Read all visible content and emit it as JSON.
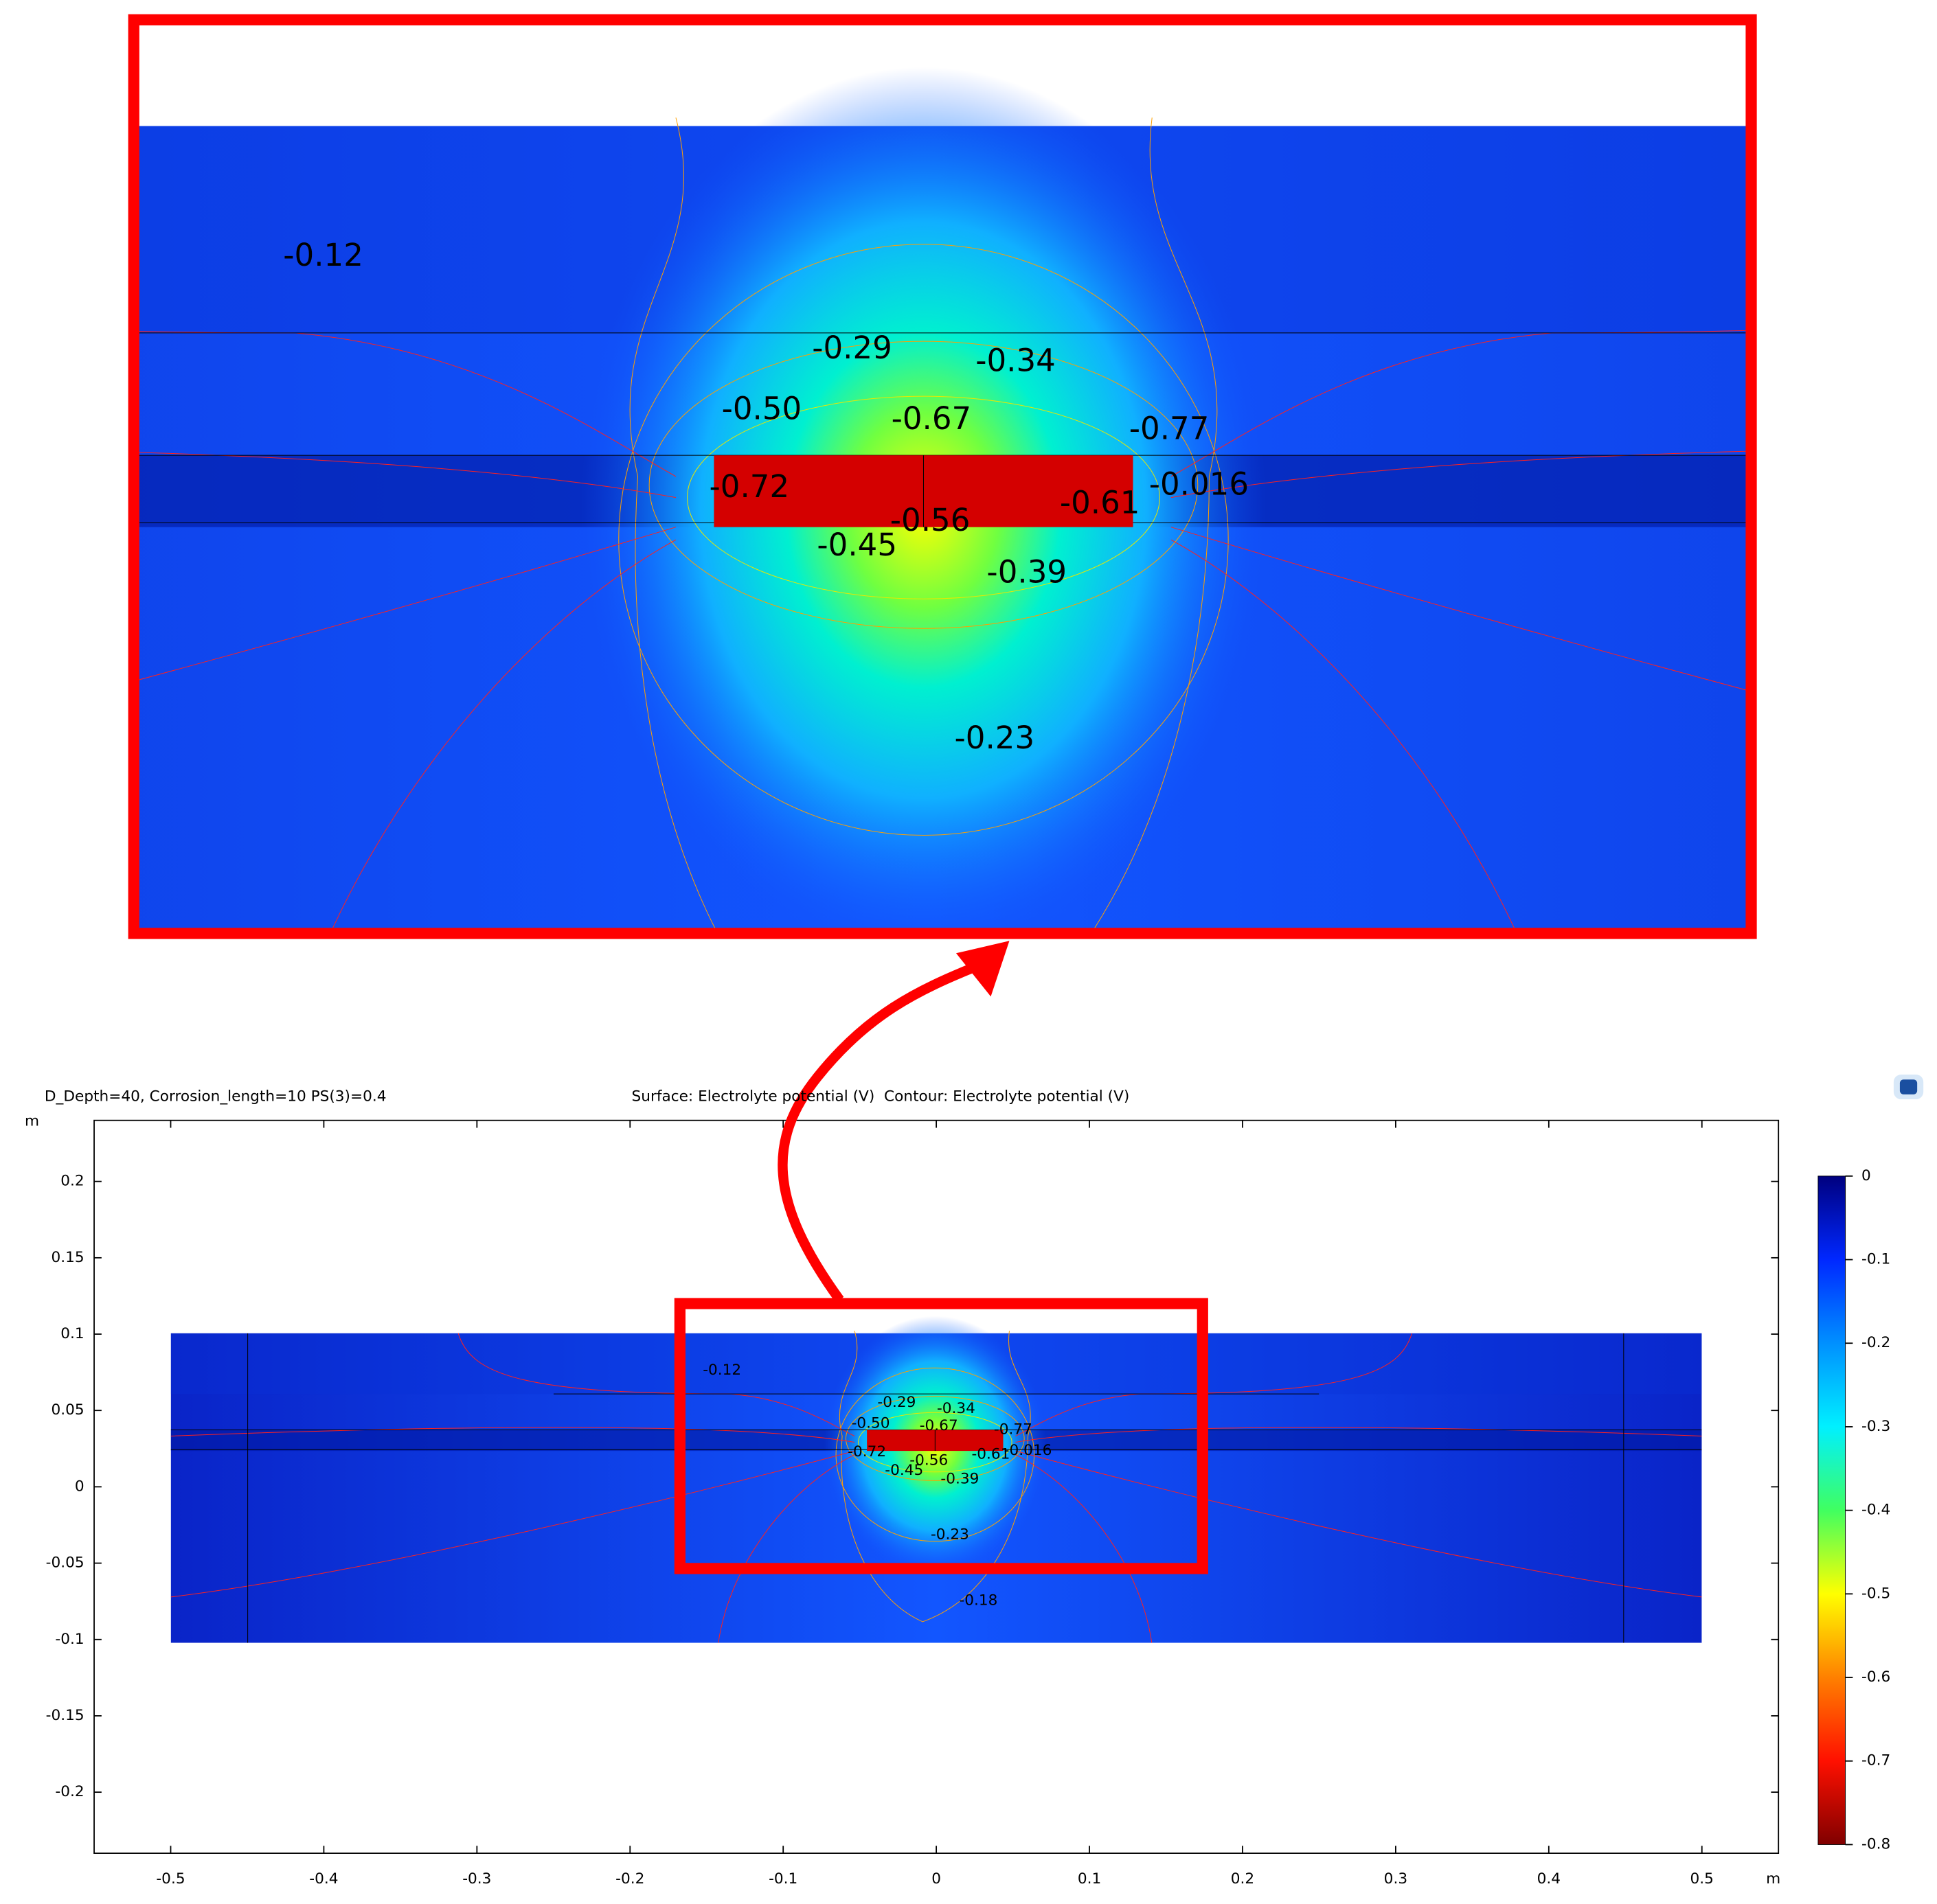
{
  "chart_data": {
    "type": "contour",
    "title_left": "D_Depth=40, Corrosion_length=10 PS(3)=0.4",
    "title": "Surface: Electrolyte potential (V)  Contour: Electrolyte potential (V)",
    "x_unit": "m",
    "y_unit": "m",
    "xlim": [
      -0.55,
      0.55
    ],
    "ylim": [
      -0.24,
      0.24
    ],
    "xticks": [
      -0.5,
      -0.4,
      -0.3,
      -0.2,
      -0.1,
      0,
      0.1,
      0.2,
      0.3,
      0.4,
      0.5
    ],
    "yticks": [
      0.2,
      0.15,
      0.1,
      0.05,
      0,
      -0.05,
      -0.1,
      -0.15,
      -0.2
    ],
    "clim": [
      -0.8,
      0
    ],
    "colorbar_ticks": [
      0,
      -0.1,
      -0.2,
      -0.3,
      -0.4,
      -0.5,
      -0.6,
      -0.7,
      -0.8
    ],
    "colormap": "jet",
    "plot_labels": [
      "-0.12",
      "-0.29",
      "-0.34",
      "-0.50",
      "-0.67",
      "-0.77",
      "-0.72",
      "-0.56",
      "-0.61",
      "-0.016",
      "-0.45",
      "-0.39",
      "-0.23",
      "-0.18"
    ],
    "inset_labels": [
      "-0.12",
      "-0.29",
      "-0.34",
      "-0.50",
      "-0.67",
      "-0.77",
      "-0.72",
      "-0.61",
      "-0.016",
      "-0.56",
      "-0.45",
      "-0.39",
      "-0.23"
    ]
  }
}
